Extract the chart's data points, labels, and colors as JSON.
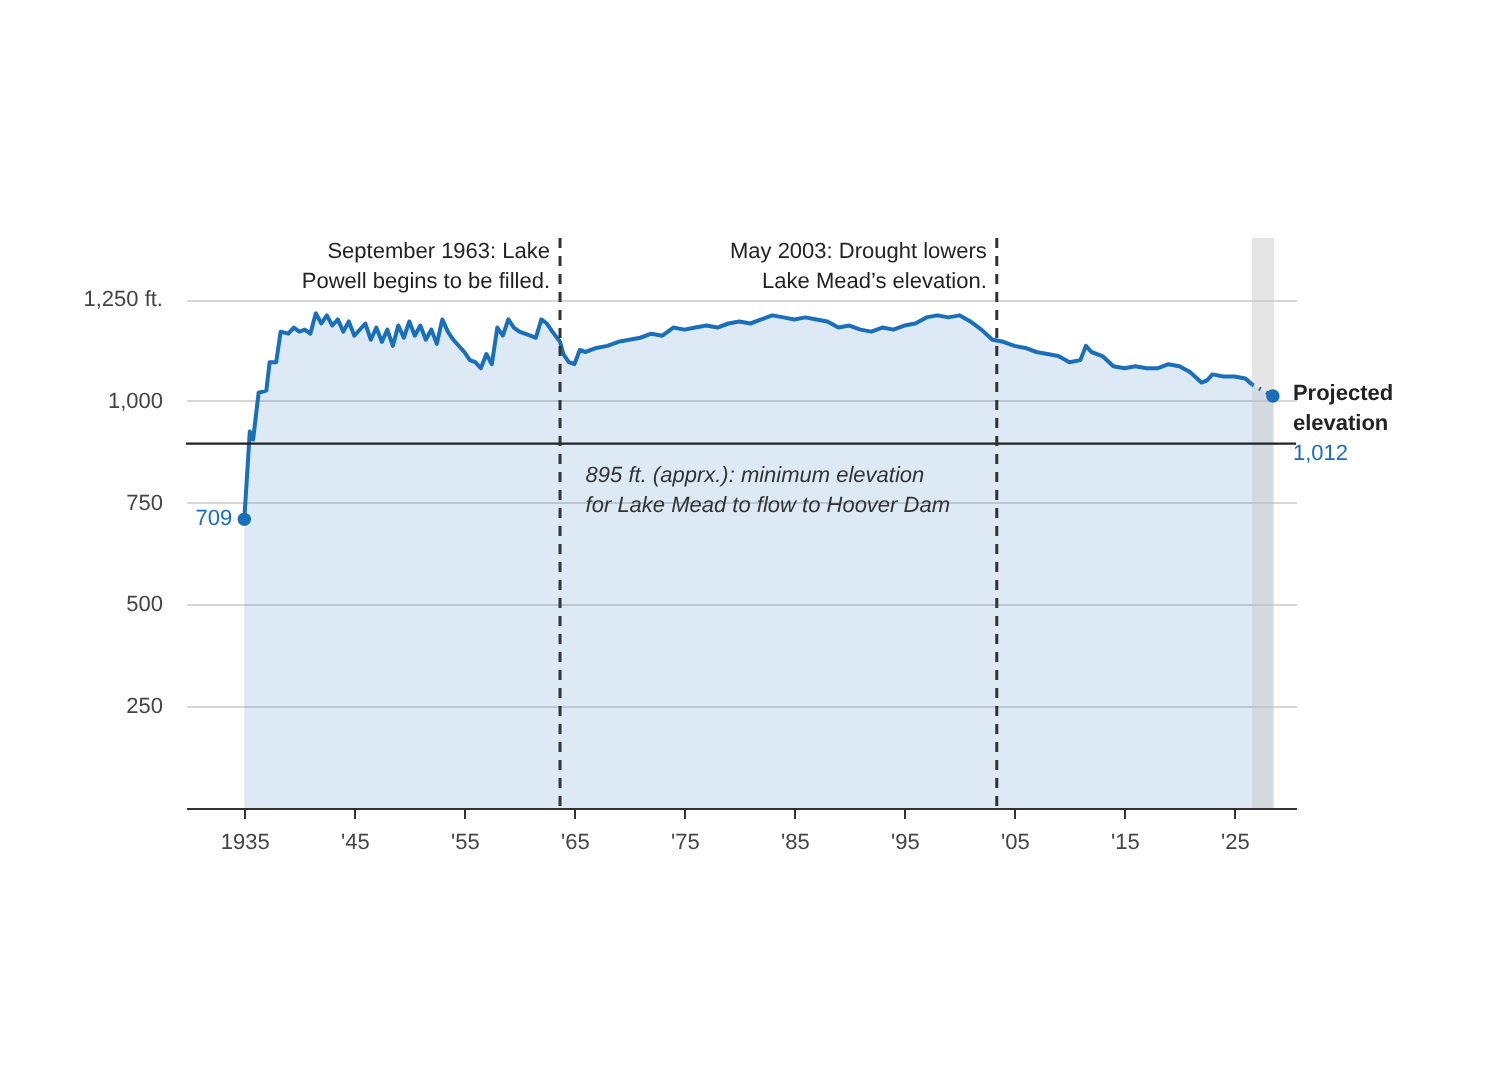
{
  "chart_data": {
    "type": "area",
    "xlim": [
      1929.7,
      2030.6
    ],
    "ylim": [
      0,
      1400
    ],
    "xticks": [
      1935,
      {
        "value": 1945,
        "label": "'45"
      },
      {
        "value": 1955,
        "label": "'55"
      },
      {
        "value": 1965,
        "label": "'65"
      },
      {
        "value": 1975,
        "label": "'75"
      },
      {
        "value": 1985,
        "label": "'85"
      },
      {
        "value": 1995,
        "label": "'95"
      },
      {
        "value": 2005,
        "label": "'05"
      },
      {
        "value": 2015,
        "label": "'15"
      },
      {
        "value": 2025,
        "label": "'25"
      }
    ],
    "yticks": [
      250,
      500,
      750,
      {
        "value": 1000,
        "label": "1,000"
      },
      {
        "value": 1250,
        "label": "1,250 ft."
      }
    ],
    "grid": "y",
    "series": [
      {
        "color": "#1a6fba",
        "line_style": "solid",
        "x": [
          1935,
          1935.5,
          1935.8,
          1936.3,
          1937,
          1937.3,
          1937.9,
          1938.3,
          1939,
          1939.5,
          1940,
          1940.5,
          1941,
          1941.5,
          1942,
          1942.5,
          1943,
          1943.5,
          1944,
          1944.5,
          1945,
          1946,
          1946.5,
          1947,
          1947.5,
          1948,
          1948.5,
          1949,
          1949.5,
          1950,
          1950.5,
          1951,
          1951.5,
          1952,
          1952.5,
          1953,
          1953.5,
          1954,
          1955,
          1955.5,
          1956,
          1956.5,
          1957,
          1957.5,
          1958,
          1958.5,
          1959,
          1959.5,
          1960,
          1961,
          1961.5,
          1962,
          1962.5,
          1963,
          1963.7,
          1964,
          1964.5,
          1965,
          1965.5,
          1966,
          1967,
          1968,
          1969,
          1970,
          1971,
          1972,
          1973,
          1974,
          1975,
          1976,
          1977,
          1978,
          1979,
          1980,
          1981,
          1982,
          1983,
          1984,
          1985,
          1986,
          1987,
          1988,
          1989,
          1990,
          1991,
          1992,
          1993,
          1994,
          1995,
          1996,
          1997,
          1998,
          1999,
          2000,
          2001,
          2002,
          2003,
          2004,
          2005,
          2006,
          2007,
          2008,
          2009,
          2010,
          2011,
          2011.5,
          2012,
          2013,
          2014,
          2015,
          2016,
          2017,
          2018,
          2019,
          2020,
          2021,
          2022,
          2022.5,
          2023,
          2024,
          2025,
          2026,
          2026.6
        ],
        "values": [
          709,
          925,
          905,
          1020,
          1025,
          1095,
          1095,
          1170,
          1165,
          1180,
          1170,
          1175,
          1165,
          1215,
          1190,
          1210,
          1185,
          1200,
          1170,
          1195,
          1160,
          1190,
          1150,
          1180,
          1145,
          1175,
          1135,
          1185,
          1155,
          1195,
          1160,
          1185,
          1150,
          1175,
          1140,
          1200,
          1170,
          1150,
          1120,
          1100,
          1095,
          1080,
          1115,
          1090,
          1180,
          1160,
          1200,
          1180,
          1170,
          1160,
          1155,
          1200,
          1190,
          1170,
          1145,
          1115,
          1095,
          1090,
          1125,
          1120,
          1130,
          1135,
          1145,
          1150,
          1155,
          1165,
          1160,
          1180,
          1175,
          1180,
          1185,
          1180,
          1190,
          1195,
          1190,
          1200,
          1210,
          1205,
          1200,
          1205,
          1200,
          1195,
          1180,
          1185,
          1175,
          1170,
          1180,
          1175,
          1185,
          1190,
          1205,
          1210,
          1205,
          1210,
          1195,
          1175,
          1150,
          1145,
          1135,
          1130,
          1120,
          1115,
          1110,
          1095,
          1100,
          1135,
          1120,
          1110,
          1085,
          1080,
          1085,
          1080,
          1080,
          1090,
          1085,
          1070,
          1045,
          1050,
          1065,
          1060,
          1060,
          1055,
          1040
        ]
      },
      {
        "type": "area",
        "color": "#1a6fba",
        "line_style": "dotted",
        "x": [
          2026.6,
          2028.5
        ],
        "values": [
          1040,
          1012
        ]
      },
      {
        "type": "scatter",
        "color": "#1a6fba",
        "marker": "circle",
        "x": [
          1935,
          2028.5
        ],
        "values": [
          709,
          1012
        ],
        "value_labels": [
          "709",
          "1,012"
        ]
      }
    ],
    "ref_lines": [
      {
        "axis": "y",
        "value": 895,
        "label": "895 ft. (apprx.): minimum elevation\nfor Lake Mead to flow to Hoover Dam",
        "color": "#222222",
        "line_style": "solid"
      },
      {
        "axis": "x",
        "value": 1963.7,
        "label": "September 1963: Lake\nPowell begins to be filled.",
        "color": "#333333",
        "line_style": "dashed"
      },
      {
        "axis": "x",
        "value": 2003.4,
        "label": "May 2003: Drought lowers\nLake Mead’s elevation.",
        "color": "#333333",
        "line_style": "dashed"
      }
    ],
    "bands": [
      {
        "axis": "x",
        "from": 2026.6,
        "to": 2028.6,
        "color": "#c8c8c8"
      }
    ],
    "annotations": [
      {
        "text": "Projected\nelevation",
        "x": 2028.5,
        "y": 1012
      }
    ]
  }
}
